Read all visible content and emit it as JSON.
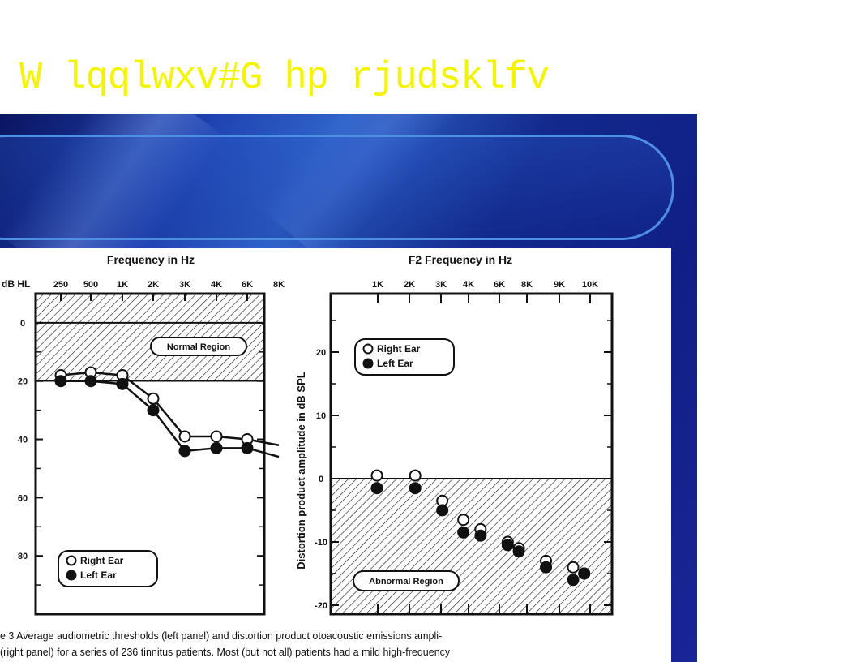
{
  "slide_title": "W lqqlwxv#G hp rjudsklfv",
  "caption": {
    "line1": "e 3  Average audiometric thresholds (left panel) and distortion product otoacoustic emissions ampli-",
    "line2": "(right panel) for a series of 236 tinnitus patients. Most (but not all) patients had a mild high-frequency"
  },
  "chart_data": [
    {
      "type": "line",
      "title": "Frequency in Hz",
      "ylabel": "dB HL",
      "categories": [
        "250",
        "500",
        "1K",
        "2K",
        "3K",
        "4K",
        "6K",
        "8K"
      ],
      "yticks": [
        0,
        20,
        40,
        60,
        80
      ],
      "ylim": [
        -10,
        100
      ],
      "y_inverted": true,
      "x_axis_position": "top",
      "grid": false,
      "shaded_region": {
        "label": "Normal Region",
        "from": -10,
        "to": 20
      },
      "legend": {
        "placement": "bottom-left"
      },
      "series": [
        {
          "name": "Right Ear",
          "marker": "open-circle",
          "x": [
            "250",
            "500",
            "1K",
            "2K",
            "3K",
            "4K",
            "6K",
            "8K"
          ],
          "values": [
            18,
            17,
            18,
            26,
            39,
            39,
            40,
            42
          ]
        },
        {
          "name": "Left Ear",
          "marker": "filled-circle",
          "x": [
            "250",
            "500",
            "1K",
            "2K",
            "3K",
            "4K",
            "6K",
            "8K"
          ],
          "values": [
            20,
            20,
            21,
            30,
            44,
            43,
            43,
            46
          ]
        }
      ]
    },
    {
      "type": "scatter",
      "title": "F2 Frequency in Hz",
      "ylabel": "Distortion product amplitude in dB SPL",
      "categories": [
        "1K",
        "2K",
        "3K",
        "4K",
        "6K",
        "8K",
        "9K",
        "10K"
      ],
      "yticks": [
        20,
        10,
        0,
        -10,
        -20
      ],
      "ylim": [
        -20,
        29
      ],
      "x_axis_position": "top",
      "grid": false,
      "shaded_region": {
        "label": "Abnormal Region",
        "from": -20,
        "to": 0
      },
      "legend": {
        "placement": "top-left"
      },
      "series": [
        {
          "name": "Right Ear",
          "marker": "open-circle",
          "x": [
            1000,
            1500,
            2000,
            2500,
            3000,
            4000,
            4500,
            6000,
            8000,
            9000
          ],
          "values": [
            0.5,
            0.5,
            -3.5,
            -6.5,
            -8,
            -10,
            -11,
            -13,
            -14,
            -15
          ]
        },
        {
          "name": "Left Ear",
          "marker": "filled-circle",
          "x": [
            1000,
            1500,
            2000,
            2500,
            3000,
            4000,
            4500,
            6000,
            8000,
            9000
          ],
          "values": [
            -1.5,
            -1.5,
            -5,
            -8.5,
            -9,
            -10.5,
            -11.5,
            -14,
            -16,
            -15
          ]
        }
      ]
    }
  ]
}
